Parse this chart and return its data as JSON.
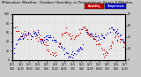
{
  "title": "Milwaukee Weather  Outdoor Humidity vs Temperature  Every 5 Minutes",
  "humidity_color": "#cc0000",
  "temperature_color": "#0000cc",
  "background_color": "#c8c8c8",
  "plot_bg_color": "#e8e8e8",
  "legend_humidity_color": "#cc0000",
  "legend_temperature_color": "#0000cc",
  "legend_humidity": "Humidity",
  "legend_temperature": "Temperature",
  "title_fontsize": 3.0,
  "tick_fontsize": 2.2,
  "marker_size": 0.8,
  "grid_color": "#bbbbbb",
  "ylim_humidity": [
    0,
    100
  ],
  "ylim_temp": [
    0,
    80
  ],
  "yticks_humidity": [
    0,
    20,
    40,
    60,
    80,
    100
  ],
  "yticks_temp": [
    0,
    20,
    40,
    60,
    80
  ]
}
